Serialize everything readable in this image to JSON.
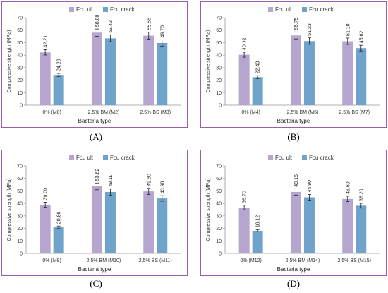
{
  "colors": {
    "ult": "#b6a6cf",
    "crack": "#6fa3c9",
    "frame": "#9b5ea8"
  },
  "legend": {
    "ult": "Fcu ult",
    "crack": "Fcu crack"
  },
  "chart_data": [
    {
      "type": "bar",
      "letter": "(A)",
      "categories": [
        "0% (M0)",
        "2.5% BM (M2)",
        "2.5% BS (M3)"
      ],
      "series": [
        {
          "name": "Fcu ult",
          "values": [
            42.21,
            58.0,
            55.56
          ]
        },
        {
          "name": "Fcu crack",
          "values": [
            24.2,
            53.42,
            49.7
          ]
        }
      ],
      "value_labels": [
        [
          "42.21",
          "58.00",
          "55.56"
        ],
        [
          "24.20",
          "53.42",
          "49.70"
        ]
      ],
      "xlabel": "Bacteria type",
      "ylabel": "Compressive  strength (MPa)",
      "ylim": [
        0,
        70
      ],
      "yticks": [
        0,
        10,
        20,
        30,
        40,
        50,
        60,
        70
      ]
    },
    {
      "type": "bar",
      "letter": "(B)",
      "categories": [
        "0% (M4)",
        "2.5% BM (M6)",
        "2.5% BS (M7)"
      ],
      "series": [
        {
          "name": "Fcu ult",
          "values": [
            40.32,
            55.75,
            51.1
          ]
        },
        {
          "name": "Fcu crack",
          "values": [
            22.43,
            51.23,
            45.62
          ]
        }
      ],
      "value_labels": [
        [
          "40.32",
          "55.75",
          "51.10"
        ],
        [
          "22.43",
          "51.23",
          "45.62"
        ]
      ],
      "xlabel": "Bacteria type",
      "ylabel": "Compressive strength (MPa)",
      "ylim": [
        0,
        70
      ],
      "yticks": [
        0,
        10,
        20,
        30,
        40,
        50,
        60,
        70
      ]
    },
    {
      "type": "bar",
      "letter": "(C)",
      "categories": [
        "0% (M8)",
        "2.5% BM (M10)",
        "2.5% BS (M11)"
      ],
      "series": [
        {
          "name": "Fcu ult",
          "values": [
            39.0,
            53.62,
            49.6
          ]
        },
        {
          "name": "Fcu crack",
          "values": [
            20.86,
            49.11,
            43.98
          ]
        }
      ],
      "value_labels": [
        [
          "39.00",
          "53.62",
          "49.60"
        ],
        [
          "20.86",
          "49.11",
          "43.98"
        ]
      ],
      "xlabel": "Bacteria type",
      "ylabel": "Compressive  strength (MPa)",
      "ylim": [
        0,
        70
      ],
      "yticks": [
        0,
        10,
        20,
        30,
        40,
        50,
        60,
        70
      ]
    },
    {
      "type": "bar",
      "letter": "(D)",
      "categories": [
        "0% (M12)",
        "2.5% BM (M14)",
        "2.5% BS (M15)"
      ],
      "series": [
        {
          "name": "Fcu ult",
          "values": [
            36.7,
            49.15,
            43.6
          ]
        },
        {
          "name": "Fcu crack",
          "values": [
            18.12,
            44.9,
            38.2
          ]
        }
      ],
      "value_labels": [
        [
          "36.70",
          "49.15",
          "43.60"
        ],
        [
          "18.12",
          "44.90",
          "38.20"
        ]
      ],
      "xlabel": "Bacteria type",
      "ylabel": "Compressive strength (MPa)",
      "ylim": [
        0,
        70
      ],
      "yticks": [
        0,
        10,
        20,
        30,
        40,
        50,
        60,
        70
      ]
    }
  ]
}
